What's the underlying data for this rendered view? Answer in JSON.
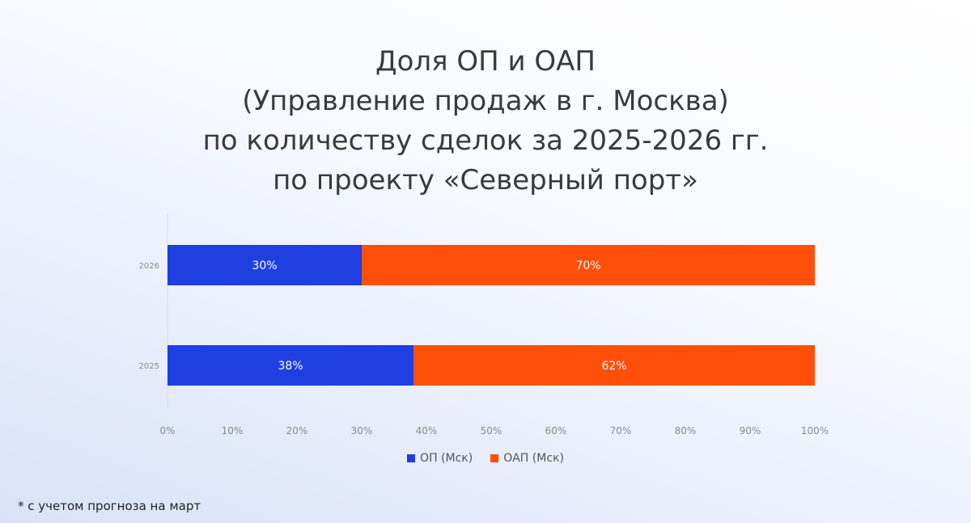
{
  "title_lines": [
    "Доля ОП и ОАП",
    "(Управление продаж в г. Москва)",
    "по количеству сделок за 2025-2026 гг.",
    "по проекту «Северный порт»"
  ],
  "footnote": "* с учетом прогноза на март",
  "colors": {
    "op": "#1f3fe0",
    "oap": "#ff4f0a",
    "axis": "#dcdcdc",
    "tick": "#8a8a8a"
  },
  "chart_data": {
    "type": "bar",
    "orientation": "horizontal",
    "stacked": true,
    "normalized_percent": true,
    "categories": [
      "2026",
      "2025"
    ],
    "series": [
      {
        "name": "ОП (Мск)",
        "values": [
          30,
          38
        ],
        "labels": [
          "30%",
          "38%"
        ],
        "color": "#1f3fe0"
      },
      {
        "name": "ОАП (Мск)",
        "values": [
          70,
          62
        ],
        "labels": [
          "70%",
          "62%"
        ],
        "color": "#ff4f0a"
      }
    ],
    "x_ticks": [
      "0%",
      "10%",
      "20%",
      "30%",
      "40%",
      "50%",
      "60%",
      "70%",
      "80%",
      "90%",
      "100%"
    ],
    "xlim": [
      0,
      100
    ],
    "grid": false,
    "legend_position": "bottom"
  }
}
